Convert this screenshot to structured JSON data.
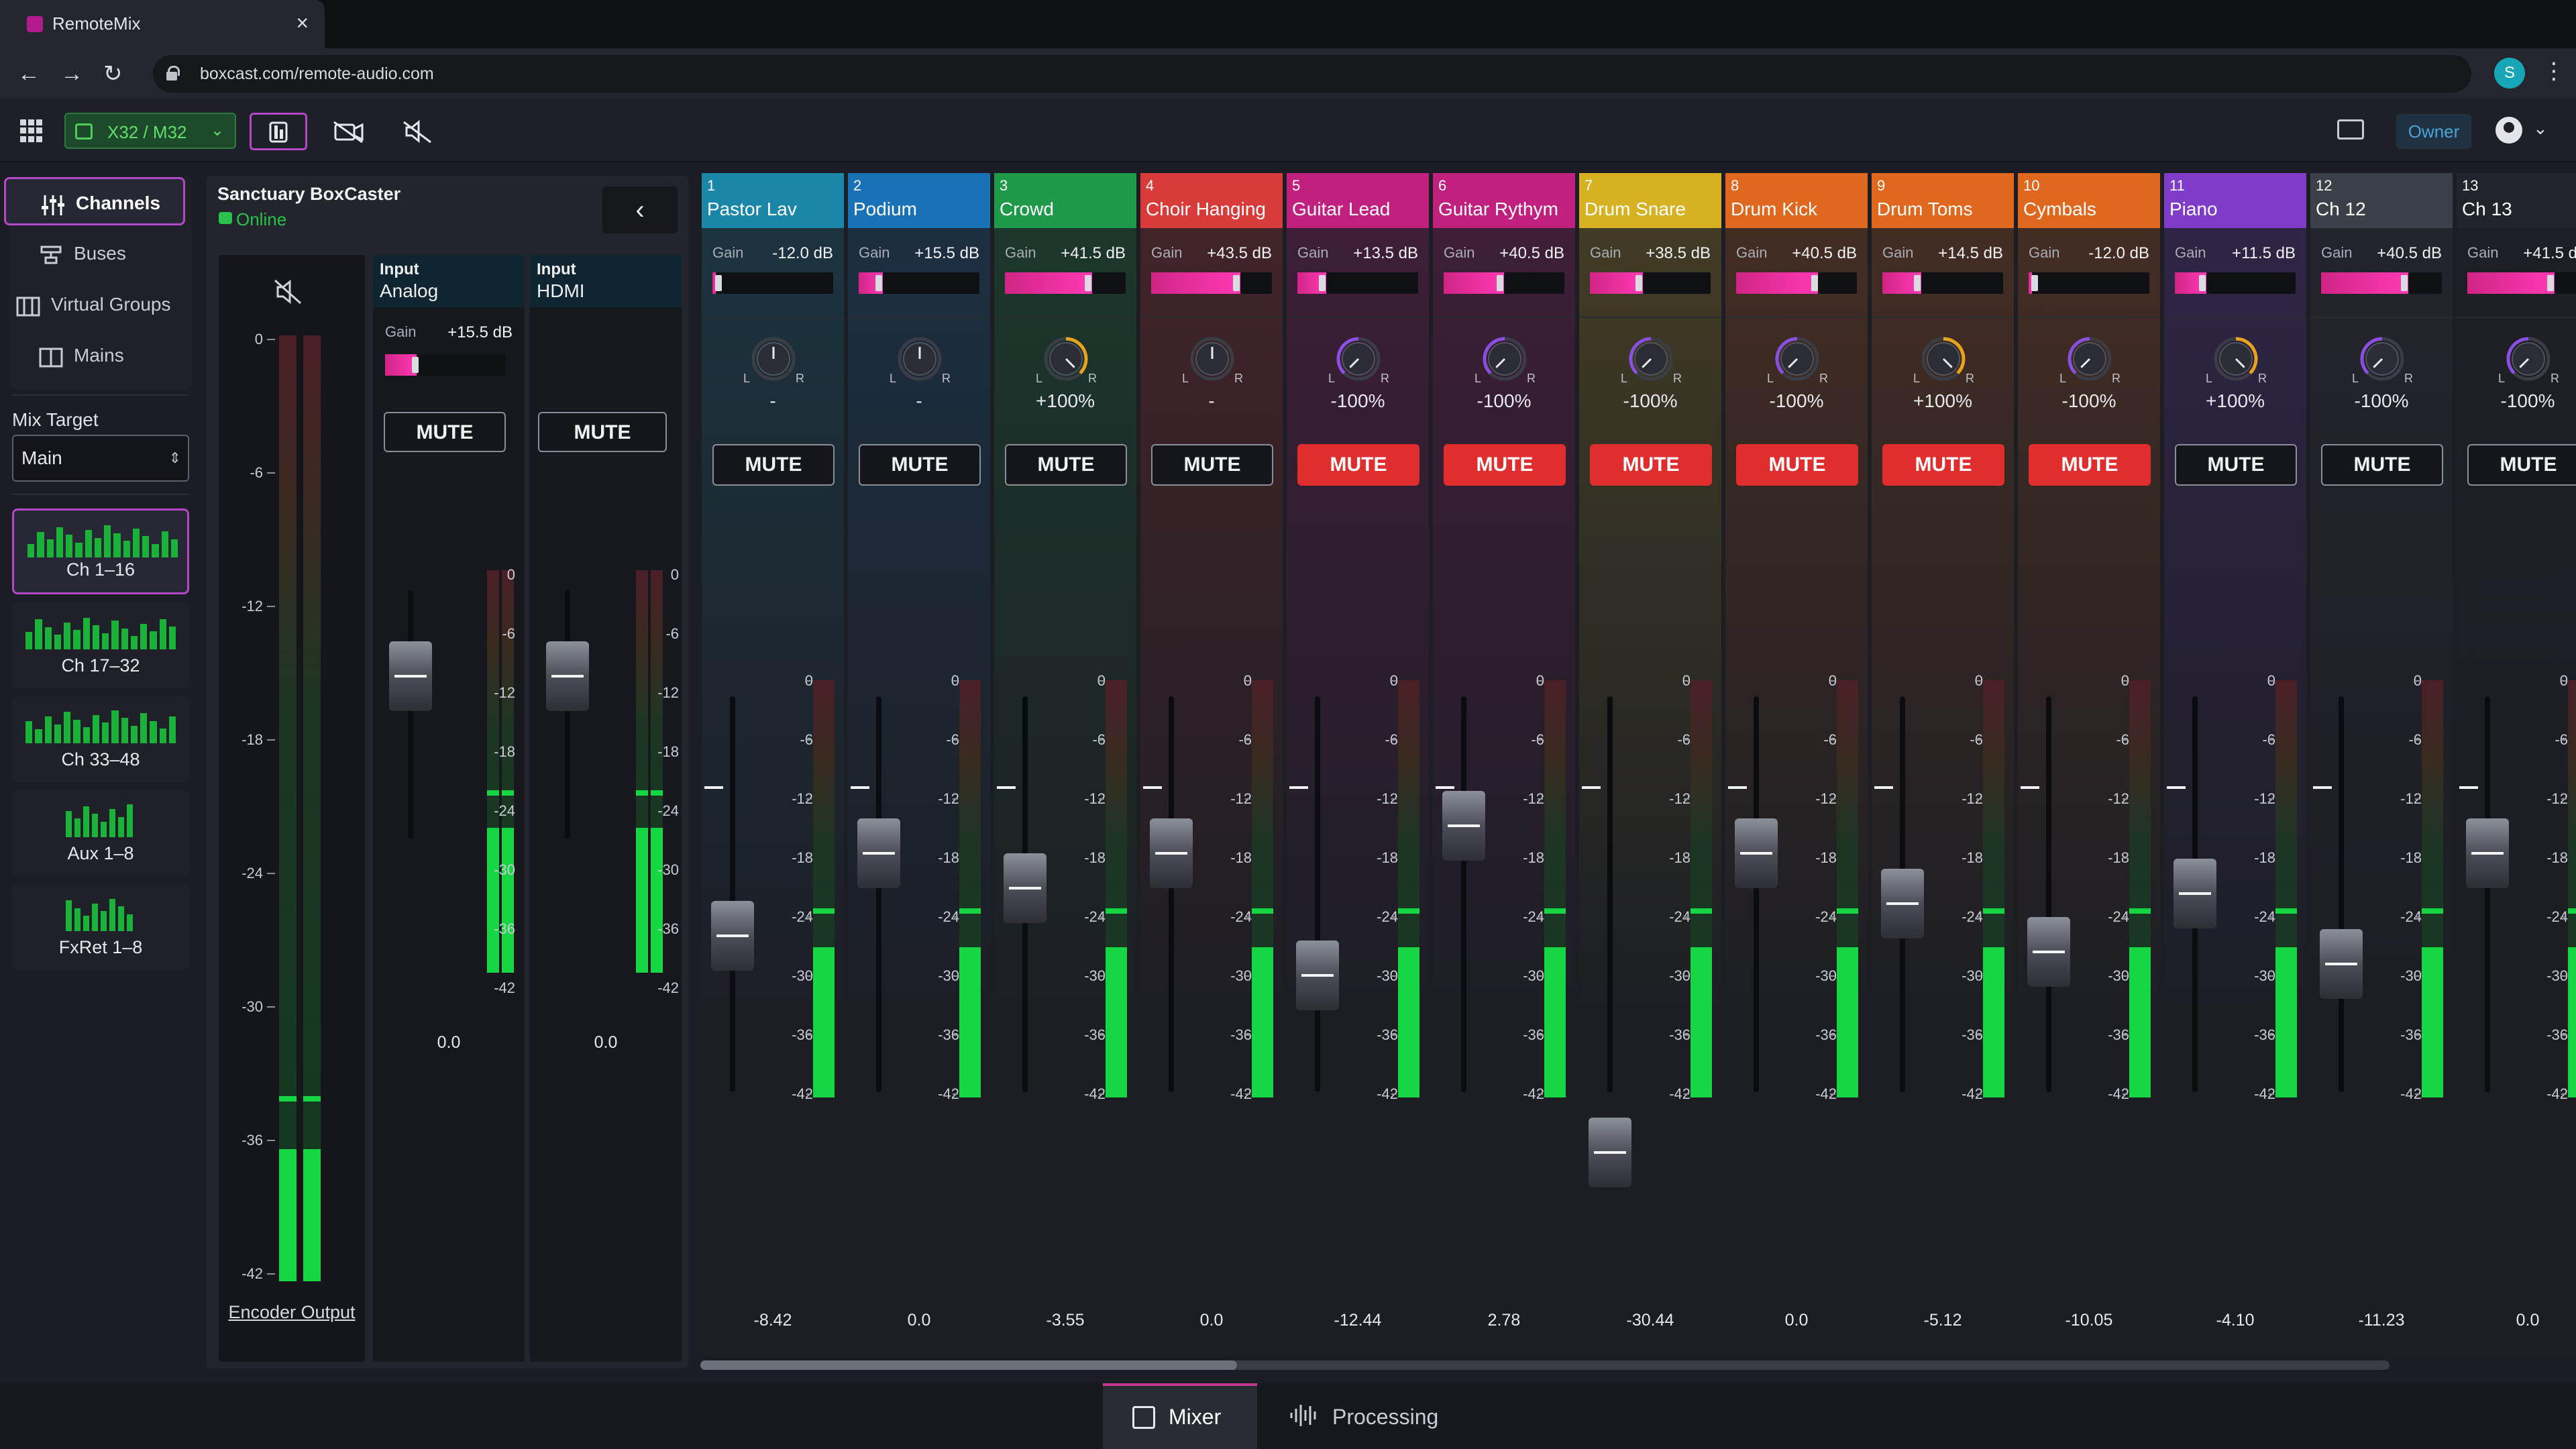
{
  "browser": {
    "tab_title": "RemoteMix",
    "url": "boxcast.com/remote-audio.com",
    "profile_initial": "S"
  },
  "appbar": {
    "device": "X32 / M32",
    "role_badge": "Owner"
  },
  "sidebar": {
    "items": [
      {
        "label": "Channels",
        "icon": "sliders-icon",
        "active": true
      },
      {
        "label": "Buses",
        "icon": "buses-icon",
        "active": false
      },
      {
        "label": "Virtual Groups",
        "icon": "virtual-groups-icon",
        "active": false
      },
      {
        "label": "Mains",
        "icon": "mains-icon",
        "active": false
      }
    ],
    "mix_target_label": "Mix Target",
    "mix_target_value": "Main",
    "banks": [
      {
        "label": "Ch 1–16",
        "active": true
      },
      {
        "label": "Ch 17–32",
        "active": false
      },
      {
        "label": "Ch 33–48",
        "active": false
      },
      {
        "label": "Aux 1–8",
        "active": false
      },
      {
        "label": "FxRet 1–8",
        "active": false
      }
    ]
  },
  "encoder": {
    "name": "Sanctuary BoxCaster",
    "status": "Online",
    "output_label": "Encoder Output",
    "scale": [
      "0",
      "-6",
      "-12",
      "-18",
      "-24",
      "-30",
      "-36",
      "-42"
    ],
    "inputs": [
      {
        "title": "Input",
        "name": "Analog",
        "gain_label": "Gain",
        "gain": "+15.5 dB",
        "mute": "MUTE",
        "value": "0.0"
      },
      {
        "title": "Input",
        "name": "HDMI",
        "mute": "MUTE",
        "value": "0.0"
      }
    ]
  },
  "channels": [
    {
      "num": "1",
      "name": "Pastor Lav",
      "color": "#1a86a8",
      "gain_label": "Gain",
      "gain": "-12.0 dB",
      "gain_level": 0.0,
      "pan": "-",
      "pan_dir": 0,
      "mute_label": "MUTE",
      "muted": false,
      "fader": "-8.42"
    },
    {
      "num": "2",
      "name": "Podium",
      "color": "#1a72b6",
      "gain_label": "Gain",
      "gain": "+15.5 dB",
      "gain_level": 0.2,
      "pan": "-",
      "pan_dir": 0,
      "mute_label": "MUTE",
      "muted": false,
      "fader": "0.0"
    },
    {
      "num": "3",
      "name": "Crowd",
      "color": "#1f9a4a",
      "gain_label": "Gain",
      "gain": "+41.5 dB",
      "gain_level": 0.72,
      "pan": "+100%",
      "pan_dir": 1,
      "mute_label": "MUTE",
      "muted": false,
      "fader": "-3.55"
    },
    {
      "num": "4",
      "name": "Choir Hanging",
      "color": "#d93a3a",
      "gain_label": "Gain",
      "gain": "+43.5 dB",
      "gain_level": 0.74,
      "pan": "-",
      "pan_dir": 0,
      "mute_label": "MUTE",
      "muted": false,
      "fader": "0.0"
    },
    {
      "num": "5",
      "name": "Guitar Lead",
      "color": "#c2207f",
      "gain_label": "Gain",
      "gain": "+13.5 dB",
      "gain_level": 0.24,
      "pan": "-100%",
      "pan_dir": -1,
      "mute_label": "MUTE",
      "muted": true,
      "fader": "-12.44"
    },
    {
      "num": "6",
      "name": "Guitar Rythym",
      "color": "#c2207f",
      "gain_label": "Gain",
      "gain": "+40.5 dB",
      "gain_level": 0.5,
      "pan": "-100%",
      "pan_dir": -1,
      "mute_label": "MUTE",
      "muted": true,
      "fader": "2.78"
    },
    {
      "num": "7",
      "name": "Drum Snare",
      "color": "#d6b222",
      "gain_label": "Gain",
      "gain": "+38.5 dB",
      "gain_level": 0.44,
      "pan": "-100%",
      "pan_dir": -1,
      "mute_label": "MUTE",
      "muted": true,
      "fader": "-30.44"
    },
    {
      "num": "8",
      "name": "Drum Kick",
      "color": "#e0681e",
      "gain_label": "Gain",
      "gain": "+40.5 dB",
      "gain_level": 0.68,
      "pan": "-100%",
      "pan_dir": -1,
      "mute_label": "MUTE",
      "muted": true,
      "fader": "0.0"
    },
    {
      "num": "9",
      "name": "Drum Toms",
      "color": "#e0681e",
      "gain_label": "Gain",
      "gain": "+14.5 dB",
      "gain_level": 0.32,
      "pan": "+100%",
      "pan_dir": 1,
      "mute_label": "MUTE",
      "muted": true,
      "fader": "-5.12"
    },
    {
      "num": "10",
      "name": "Cymbals",
      "color": "#e0681e",
      "gain_label": "Gain",
      "gain": "-12.0 dB",
      "gain_level": 0.0,
      "pan": "-100%",
      "pan_dir": -1,
      "mute_label": "MUTE",
      "muted": true,
      "fader": "-10.05"
    },
    {
      "num": "11",
      "name": "Piano",
      "color": "#7f3cc9",
      "gain_label": "Gain",
      "gain": "+11.5 dB",
      "gain_level": 0.26,
      "pan": "+100%",
      "pan_dir": 1,
      "mute_label": "MUTE",
      "muted": false,
      "fader": "-4.10"
    },
    {
      "num": "12",
      "name": "Ch 12",
      "color": "#3c4048",
      "gain_label": "Gain",
      "gain": "+40.5 dB",
      "gain_level": 0.72,
      "pan": "-100%",
      "pan_dir": -1,
      "mute_label": "MUTE",
      "muted": false,
      "fader": "-11.23"
    },
    {
      "num": "13",
      "name": "Ch 13",
      "color": "#22242b",
      "gain_label": "Gain",
      "gain": "+41.5 dB",
      "gain_level": 0.72,
      "pan": "-100%",
      "pan_dir": -1,
      "mute_label": "MUTE",
      "muted": false,
      "fader": "0.0"
    }
  ],
  "bottom_tabs": [
    {
      "label": "Mixer",
      "active": true
    },
    {
      "label": "Processing",
      "active": false
    }
  ]
}
